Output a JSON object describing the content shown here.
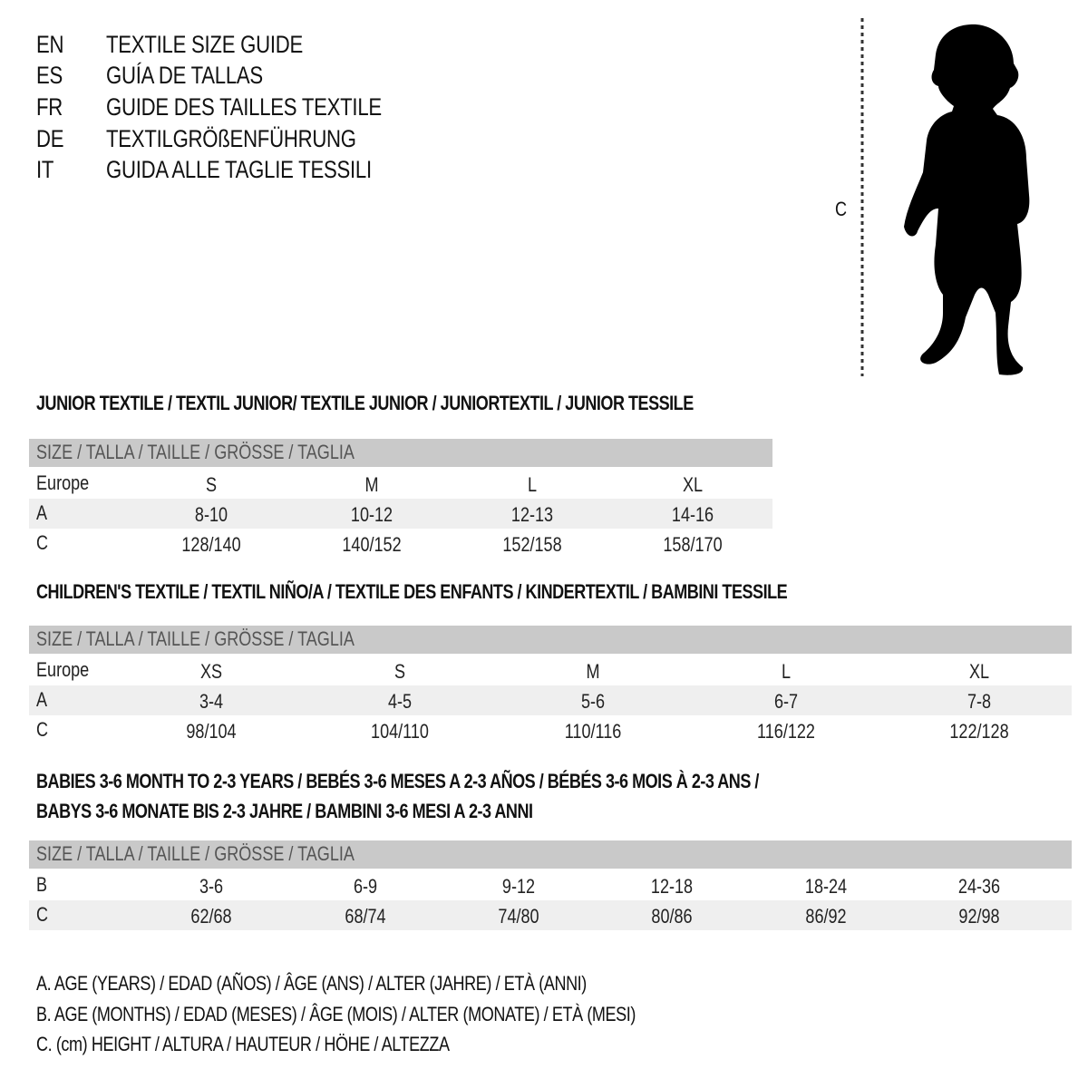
{
  "title_lines": [
    {
      "lang": "EN",
      "text": "TEXTILE SIZE GUIDE"
    },
    {
      "lang": "ES",
      "text": "GUÍA DE TALLAS"
    },
    {
      "lang": "FR",
      "text": "GUIDE DES TAILLES TEXTILE"
    },
    {
      "lang": "DE",
      "text": "TEXTILGRÖßENFÜHRUNG"
    },
    {
      "lang": "IT",
      "text": "GUIDA ALLE TAGLIE TESSILI"
    }
  ],
  "figure": {
    "measure_label": "C",
    "icon": "child-silhouette-icon"
  },
  "size_header": "SIZE / TALLA / TAILLE / GRÖSSE / TAGLIA",
  "junior": {
    "heading": "JUNIOR TEXTILE / TEXTIL JUNIOR/ TEXTILE JUNIOR / JUNIORTEXTIL / JUNIOR TESSILE",
    "rows": [
      {
        "label": "Europe",
        "values": [
          "S",
          "M",
          "L",
          "XL"
        ]
      },
      {
        "label": "A",
        "values": [
          "8-10",
          "10-12",
          "12-13",
          "14-16"
        ]
      },
      {
        "label": "C",
        "values": [
          "128/140",
          "140/152",
          "152/158",
          "158/170"
        ]
      }
    ]
  },
  "children": {
    "heading": "CHILDREN'S TEXTILE / TEXTIL NIÑO/A / TEXTILE DES ENFANTS / KINDERTEXTIL / BAMBINI TESSILE",
    "rows": [
      {
        "label": "Europe",
        "values": [
          "XS",
          "S",
          "M",
          "L",
          "XL"
        ]
      },
      {
        "label": "A",
        "values": [
          "3-4",
          "4-5",
          "5-6",
          "6-7",
          "7-8"
        ]
      },
      {
        "label": "C",
        "values": [
          "98/104",
          "104/110",
          "110/116",
          "116/122",
          "122/128"
        ]
      }
    ]
  },
  "babies": {
    "heading_line1": "BABIES 3-6 MONTH TO 2-3 YEARS / BEBÉS 3-6 MESES A 2-3 AÑOS / BÉBÉS 3-6 MOIS À 2-3 ANS /",
    "heading_line2": "BABYS 3-6 MONATE BIS 2-3 JAHRE / BAMBINI 3-6 MESI A 2-3 ANNI",
    "rows": [
      {
        "label": "B",
        "values": [
          "3-6",
          "6-9",
          "9-12",
          "12-18",
          "18-24",
          "24-36"
        ]
      },
      {
        "label": "C",
        "values": [
          "62/68",
          "68/74",
          "74/80",
          "80/86",
          "86/92",
          "92/98"
        ]
      }
    ]
  },
  "legend": [
    "A. AGE (YEARS) / EDAD (AÑOS) / ÂGE (ANS) / ALTER (JAHRE) / ETÀ (ANNI)",
    "B. AGE (MONTHS) / EDAD (MESES) / ÂGE (MOIS) / ALTER (MONATE) / ETÀ (MESI)",
    "C. (cm) HEIGHT / ALTURA / HAUTEUR / HÖHE / ALTEZZA"
  ],
  "colors": {
    "header_bar": "#c9c9c9",
    "alt_row": "#efefef"
  }
}
